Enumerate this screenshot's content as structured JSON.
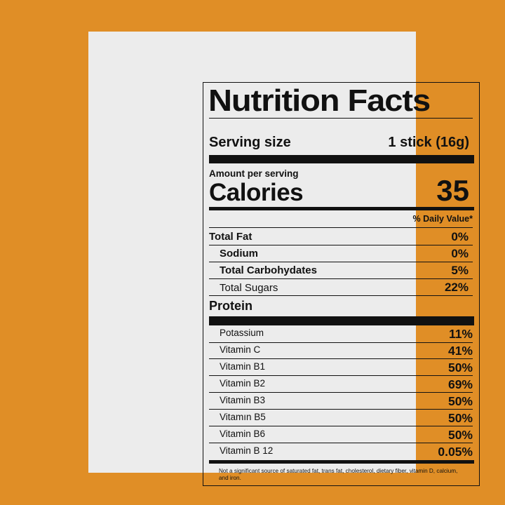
{
  "label": {
    "title": "Nutrition Facts",
    "serving_label": "Serving size",
    "serving_value": "1 stick (16g)",
    "amount_per_serving": "Amount per serving",
    "calories_label": "Calories",
    "calories_value": "35",
    "daily_value_header": "% Daily Value*",
    "nutrients": [
      {
        "label": "Total Fat",
        "value": "0%",
        "style": "bold"
      },
      {
        "label": "Sodium",
        "value": "0%",
        "style": "bold-indent"
      },
      {
        "label": "Total Carbohydates",
        "value": "5%",
        "style": "bold-indent"
      },
      {
        "label": "Total Sugars",
        "value": "22%",
        "style": "indent"
      },
      {
        "label": "Protein",
        "value": "",
        "style": "bold"
      }
    ],
    "vitamins": [
      {
        "label": "Potassium",
        "value": "11%"
      },
      {
        "label": "Vitamin C",
        "value": "41%"
      },
      {
        "label": "Vitamin B1",
        "value": "50%"
      },
      {
        "label": "Vitamin B2",
        "value": "69%"
      },
      {
        "label": "Vitamin B3",
        "value": "50%"
      },
      {
        "label": "Vitamın B5",
        "value": "50%"
      },
      {
        "label": "Vitamin B6",
        "value": "50%"
      },
      {
        "label": "Vitamin B 12",
        "value": "0.05%"
      }
    ],
    "footnote": "Not a significant source of saturated fat, trans fat, cholesterol, dietary fiber, vitamin D, calcium, and iron."
  },
  "colors": {
    "background": "#e08e26",
    "card": "#ececec",
    "ink": "#111111"
  }
}
